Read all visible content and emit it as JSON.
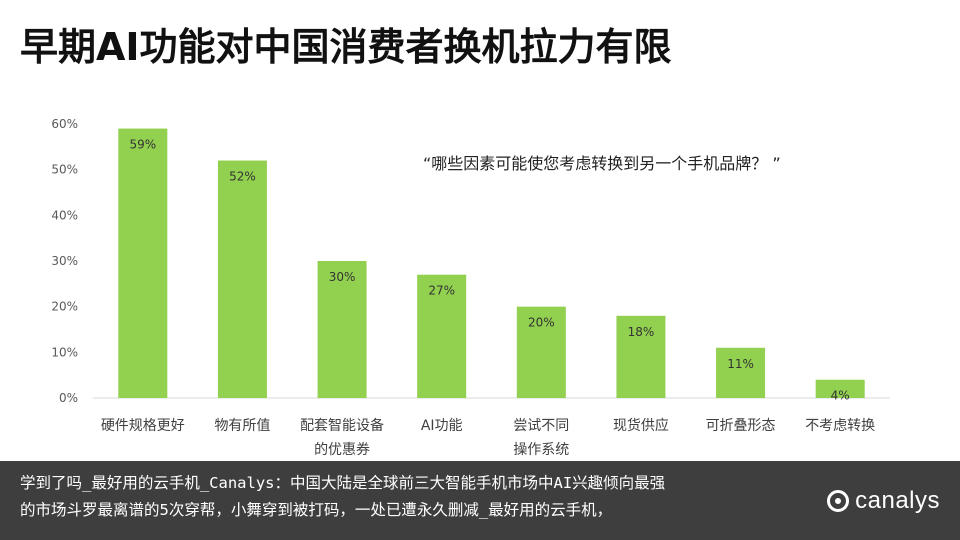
{
  "title": "早期AI功能对中国消费者换机拉力有限",
  "quote": "“哪些因素可能使您考虑转换到另一个手机品牌？ ”",
  "caption": {
    "line1": "学到了吗_最好用的云手机_Canalys：中国大陆是全球前三大智能手机市场中AI兴趣倾向最强",
    "line2": "的市场斗罗最离谱的5次穿帮，小舞穿到被打码，一处已遭永久删减_最好用的云手机，"
  },
  "logo": {
    "text": "canalys"
  },
  "colors": {
    "bar": "#92d050",
    "axis_text": "#595959",
    "grid": "#d9d9d9"
  },
  "chart_data": {
    "type": "bar",
    "title": "",
    "xlabel": "",
    "ylabel": "",
    "categories": [
      "硬件规格更好",
      "物有所值",
      "配套智能设备的优惠券",
      "AI功能",
      "尝试不同操作系统",
      "现货供应",
      "可折叠形态",
      "不考虑转换"
    ],
    "category_lines": [
      [
        "硬件规格更好"
      ],
      [
        "物有所值"
      ],
      [
        "配套智能设备",
        "的优惠券"
      ],
      [
        "AI功能"
      ],
      [
        "尝试不同",
        "操作系统"
      ],
      [
        "现货供应"
      ],
      [
        "可折叠形态"
      ],
      [
        "不考虑转换"
      ]
    ],
    "values": [
      59,
      52,
      30,
      27,
      20,
      18,
      11,
      4
    ],
    "data_labels": [
      "59%",
      "52%",
      "30%",
      "27%",
      "20%",
      "18%",
      "11%",
      "4%"
    ],
    "ylim": [
      0,
      60
    ],
    "yticks": [
      "0%",
      "10%",
      "20%",
      "30%",
      "40%",
      "50%",
      "60%"
    ],
    "grid": false,
    "legend": "none"
  }
}
